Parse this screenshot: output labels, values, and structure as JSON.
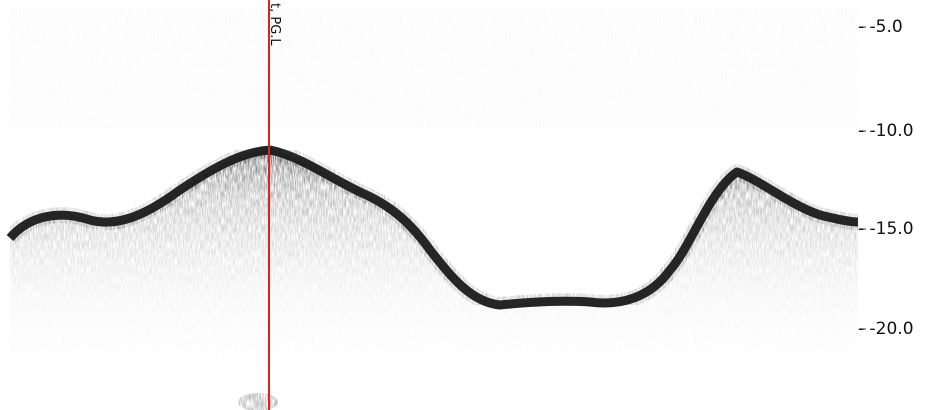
{
  "echogram": {
    "depth_axis": {
      "tick_labels": [
        "- -5.0",
        "- -10.0",
        "- -15.0",
        "- -20.0"
      ]
    },
    "marker": {
      "label": "t, PG.L",
      "color": "#e31e1e"
    },
    "colors": {
      "background": "#ffffff",
      "bottom_echo": "#111111",
      "marker_line": "#e31e1e"
    }
  }
}
